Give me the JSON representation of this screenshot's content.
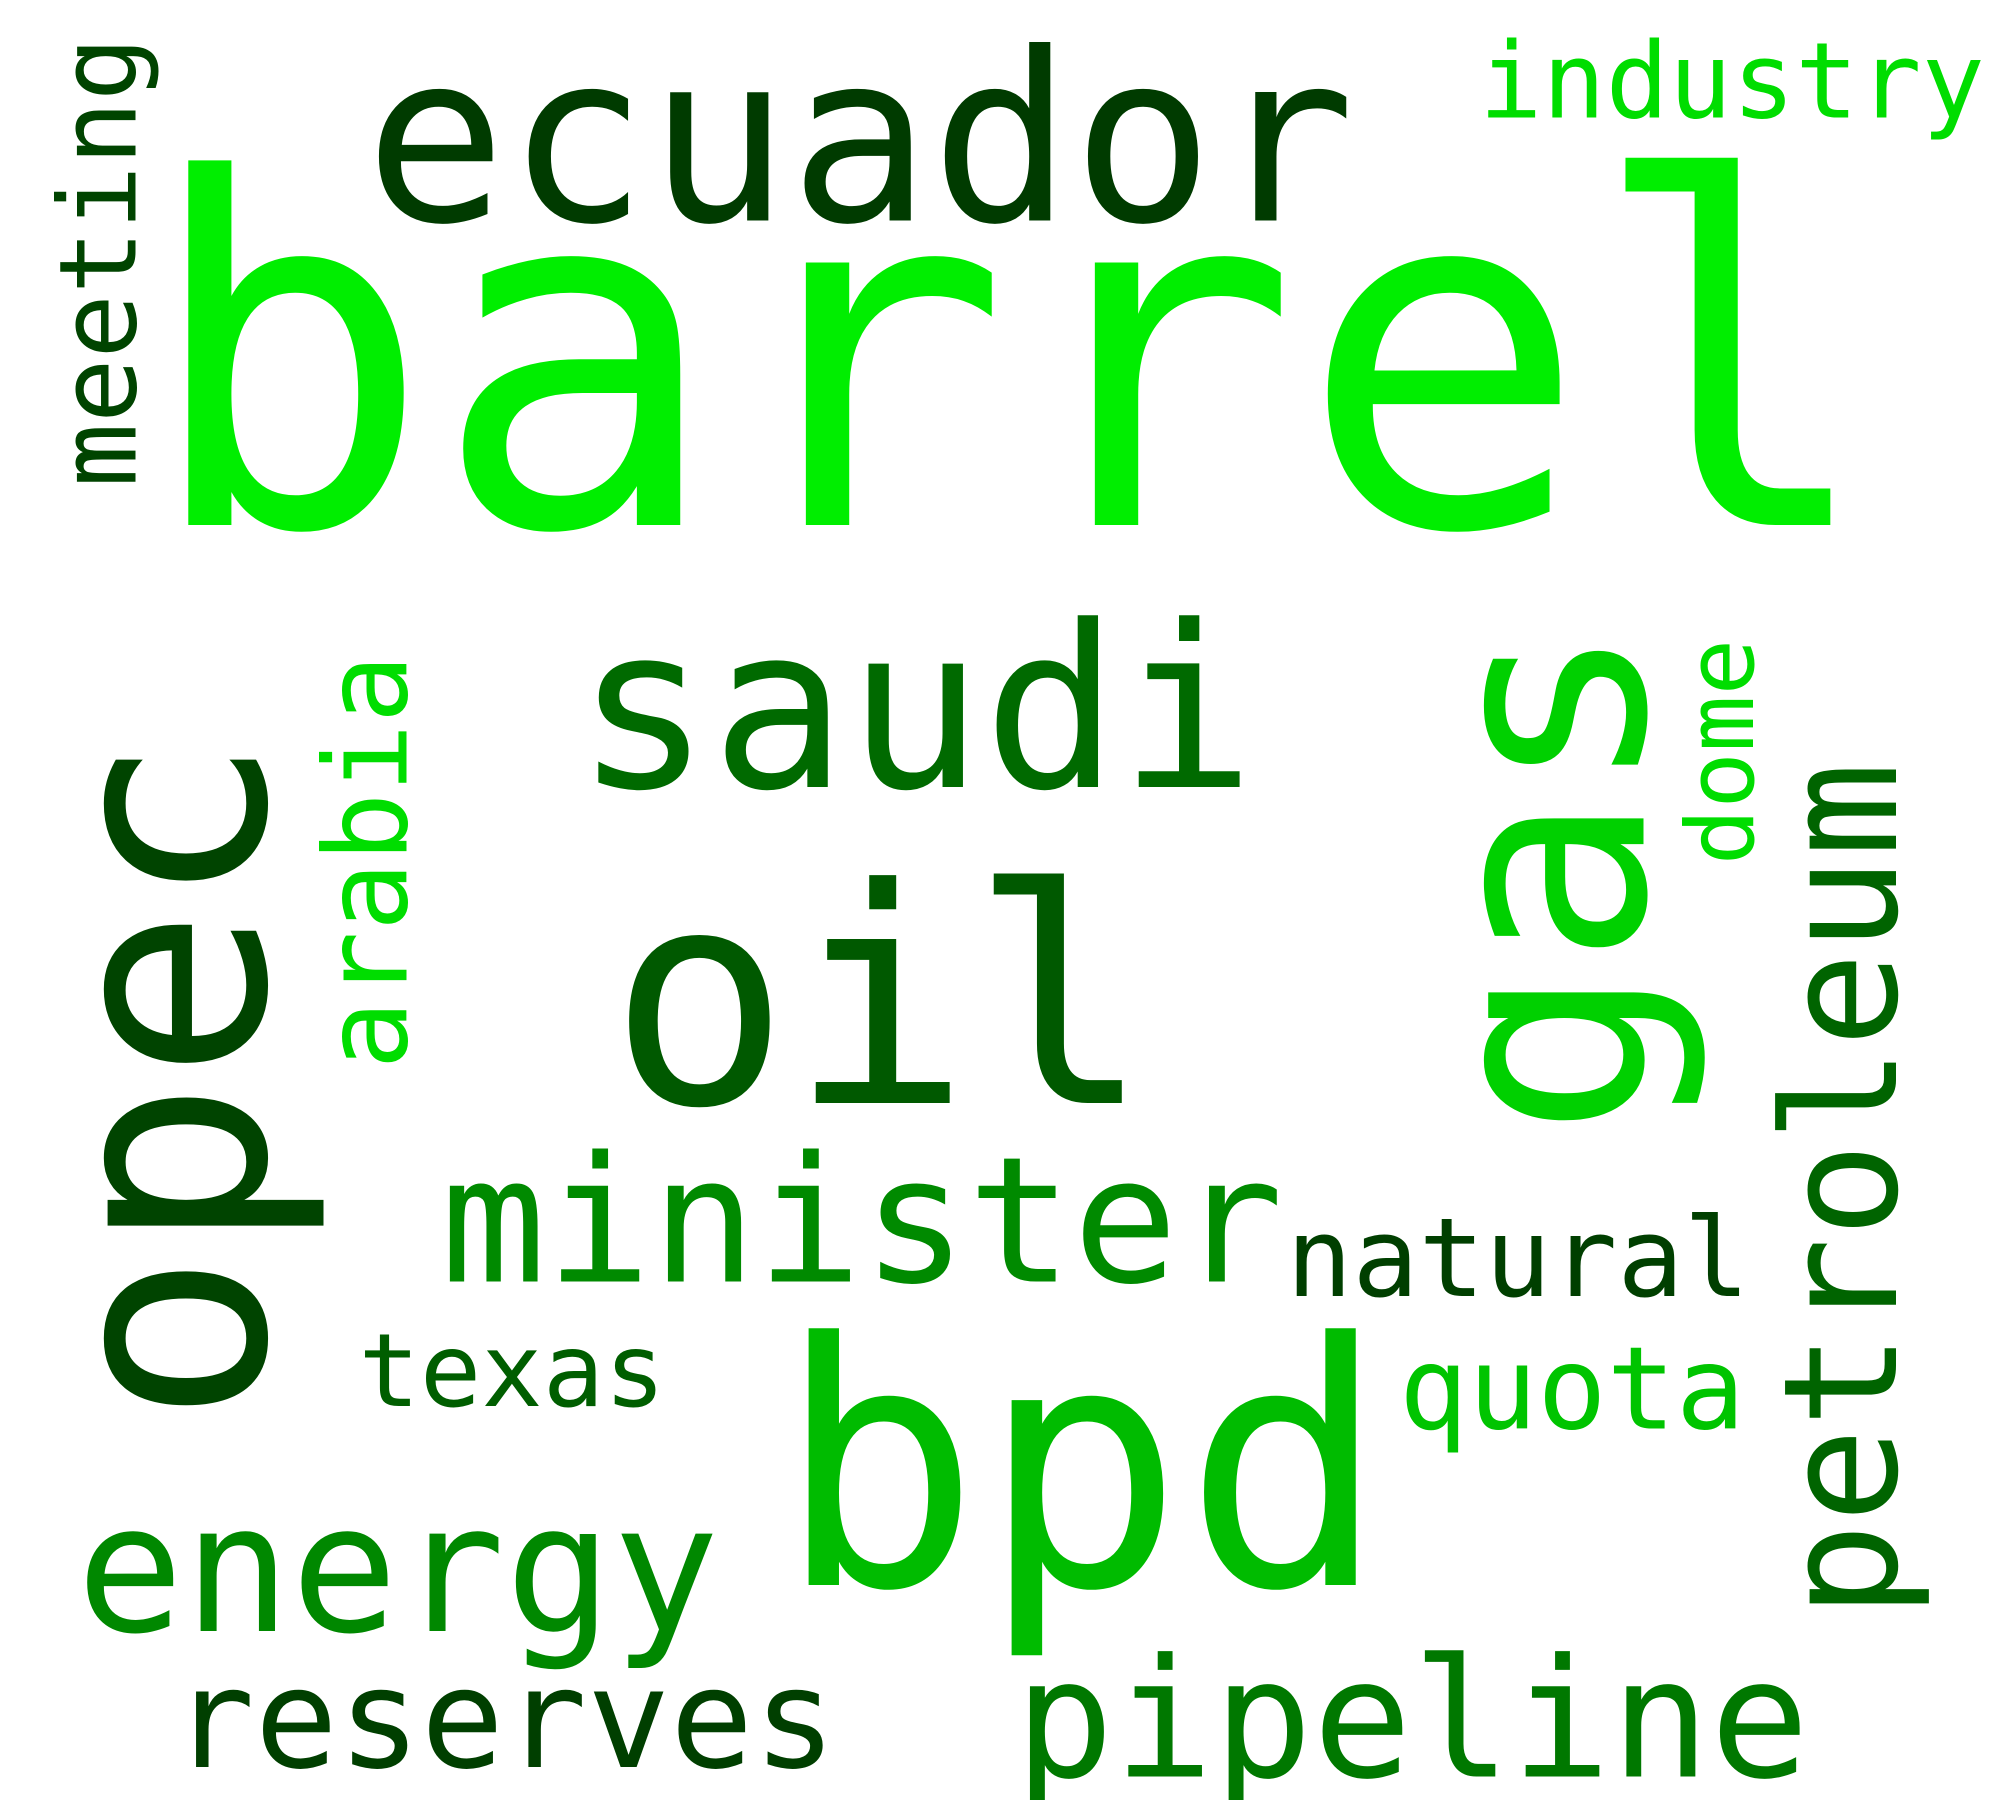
{
  "words": [
    {
      "text": "barrel",
      "color": "#00ee00",
      "orientation": "horizontal"
    },
    {
      "text": "ecuador",
      "color": "#003b00",
      "orientation": "horizontal"
    },
    {
      "text": "industry",
      "color": "#00dd00",
      "orientation": "horizontal"
    },
    {
      "text": "meeting",
      "color": "#004400",
      "orientation": "vertical"
    },
    {
      "text": "opec",
      "color": "#004400",
      "orientation": "vertical"
    },
    {
      "text": "arabia",
      "color": "#00dd00",
      "orientation": "vertical"
    },
    {
      "text": "saudi",
      "color": "#006a00",
      "orientation": "horizontal"
    },
    {
      "text": "gas",
      "color": "#00d000",
      "orientation": "vertical"
    },
    {
      "text": "dome",
      "color": "#00dd00",
      "orientation": "vertical"
    },
    {
      "text": "petroleum",
      "color": "#006400",
      "orientation": "vertical"
    },
    {
      "text": "oil",
      "color": "#005900",
      "orientation": "horizontal"
    },
    {
      "text": "minister",
      "color": "#008a00",
      "orientation": "horizontal"
    },
    {
      "text": "natural",
      "color": "#003f00",
      "orientation": "horizontal"
    },
    {
      "text": "texas",
      "color": "#005e00",
      "orientation": "horizontal"
    },
    {
      "text": "quota",
      "color": "#00c400",
      "orientation": "horizontal"
    },
    {
      "text": "bpd",
      "color": "#00bb00",
      "orientation": "horizontal"
    },
    {
      "text": "energy",
      "color": "#008800",
      "orientation": "horizontal"
    },
    {
      "text": "pipeline",
      "color": "#007800",
      "orientation": "horizontal"
    },
    {
      "text": "reserves",
      "color": "#003f00",
      "orientation": "horizontal"
    }
  ]
}
